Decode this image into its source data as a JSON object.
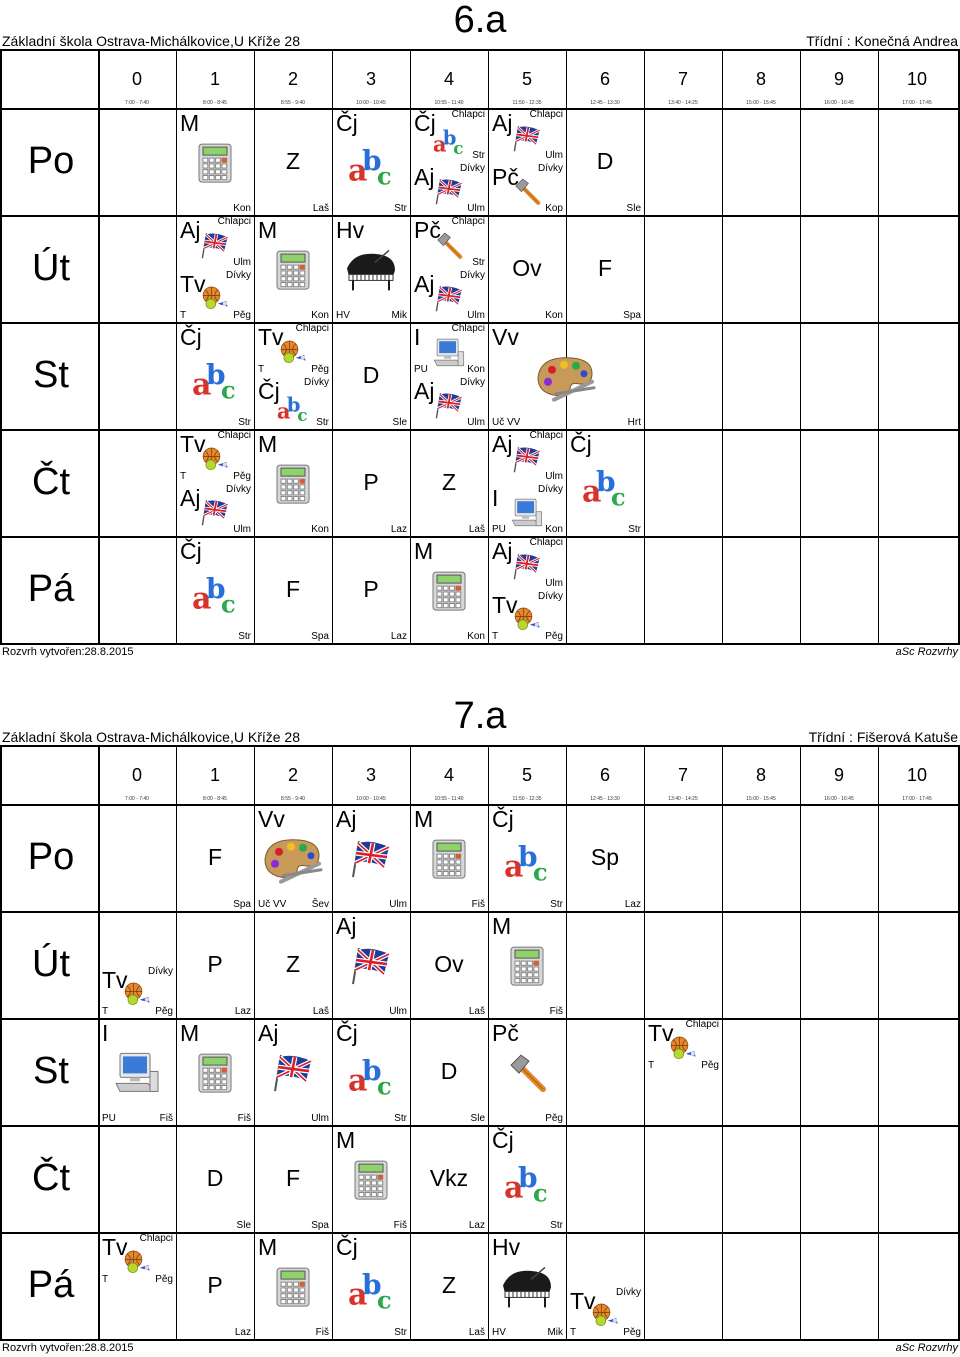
{
  "school": "Základní škola Ostrava-Michálkovice,U Kříže 28",
  "created": "Rozvrh vytvořen:28.8.2015",
  "brand": "aSc Rozvrhy",
  "periods": [
    "0",
    "1",
    "2",
    "3",
    "4",
    "5",
    "6",
    "7",
    "8",
    "9",
    "10"
  ],
  "times": [
    "7:00 - 7:40",
    "8:00 - 8:45",
    "8:55 - 9:40",
    "10:00 - 10:45",
    "10:55 - 11:40",
    "11:50 - 12:35",
    "12:45 - 13:30",
    "13:40 - 14:25",
    "15:00 - 15:45",
    "16:00 - 16:45",
    "17:00 - 17:45"
  ],
  "days": [
    "Po",
    "Út",
    "St",
    "Čt",
    "Pá"
  ],
  "schedules": [
    {
      "title": "6.a",
      "teacher": "Třídní : Konečná Andrea",
      "cells": [
        {
          "d": 0,
          "p": 1,
          "s": "M",
          "t": "Kon",
          "icon": "calc-icon"
        },
        {
          "d": 0,
          "p": 2,
          "s": "Z",
          "t": "Laš",
          "center": true
        },
        {
          "d": 0,
          "p": 3,
          "s": "Čj",
          "t": "Str",
          "icon": "abc-icon"
        },
        {
          "d": 0,
          "p": 4,
          "h": 0,
          "s": "Čj",
          "g": "Chlapci",
          "t": "Str",
          "icon": "abc-icon"
        },
        {
          "d": 0,
          "p": 4,
          "h": 1,
          "s": "Aj",
          "g": "Dívky",
          "t": "Ulm",
          "icon": "flag-icon"
        },
        {
          "d": 0,
          "p": 5,
          "h": 0,
          "s": "Aj",
          "g": "Chlapci",
          "t": "Ulm",
          "icon": "flag-icon"
        },
        {
          "d": 0,
          "p": 5,
          "h": 1,
          "s": "Pč",
          "g": "Dívky",
          "t": "Kop",
          "icon": "hammer-icon"
        },
        {
          "d": 0,
          "p": 6,
          "s": "D",
          "t": "Sle",
          "center": true
        },
        {
          "d": 1,
          "p": 1,
          "h": 0,
          "s": "Aj",
          "g": "Chlapci",
          "t": "Ulm",
          "icon": "flag-icon"
        },
        {
          "d": 1,
          "p": 1,
          "h": 1,
          "s": "Tv",
          "g": "Dívky",
          "r": "T",
          "t": "Pěg",
          "icon": "ball-icon"
        },
        {
          "d": 1,
          "p": 2,
          "s": "M",
          "t": "Kon",
          "icon": "calc-icon"
        },
        {
          "d": 1,
          "p": 3,
          "s": "Hv",
          "r": "HV",
          "t": "Mik",
          "icon": "piano-icon"
        },
        {
          "d": 1,
          "p": 4,
          "h": 0,
          "s": "Pč",
          "g": "Chlapci",
          "t": "Str",
          "icon": "hammer-icon"
        },
        {
          "d": 1,
          "p": 4,
          "h": 1,
          "s": "Aj",
          "g": "Dívky",
          "t": "Ulm",
          "icon": "flag-icon"
        },
        {
          "d": 1,
          "p": 5,
          "s": "Ov",
          "t": "Kon",
          "center": true
        },
        {
          "d": 1,
          "p": 6,
          "s": "F",
          "t": "Spa",
          "center": true
        },
        {
          "d": 2,
          "p": 1,
          "s": "Čj",
          "t": "Str",
          "icon": "abc-icon"
        },
        {
          "d": 2,
          "p": 2,
          "h": 0,
          "s": "Tv",
          "g": "Chlapci",
          "r": "T",
          "t": "Pěg",
          "icon": "ball-icon"
        },
        {
          "d": 2,
          "p": 2,
          "h": 1,
          "s": "Čj",
          "g": "Dívky",
          "t": "Str",
          "icon": "abc-icon"
        },
        {
          "d": 2,
          "p": 3,
          "s": "D",
          "t": "Sle",
          "center": true
        },
        {
          "d": 2,
          "p": 4,
          "h": 0,
          "s": "I",
          "g": "Chlapci",
          "r": "PU",
          "t": "Kon",
          "icon": "pc-icon"
        },
        {
          "d": 2,
          "p": 4,
          "h": 1,
          "s": "Aj",
          "g": "Dívky",
          "t": "Ulm",
          "icon": "flag-icon"
        },
        {
          "d": 2,
          "p": 5,
          "span": 2,
          "s": "Vv",
          "r": "Uč VV",
          "t": "Hrt",
          "icon": "palette-icon"
        },
        {
          "d": 3,
          "p": 1,
          "h": 0,
          "s": "Tv",
          "g": "Chlapci",
          "r": "T",
          "t": "Pěg",
          "icon": "ball-icon"
        },
        {
          "d": 3,
          "p": 1,
          "h": 1,
          "s": "Aj",
          "g": "Dívky",
          "t": "Ulm",
          "icon": "flag-icon"
        },
        {
          "d": 3,
          "p": 2,
          "s": "M",
          "t": "Kon",
          "icon": "calc-icon"
        },
        {
          "d": 3,
          "p": 3,
          "s": "P",
          "t": "Laz",
          "center": true
        },
        {
          "d": 3,
          "p": 4,
          "s": "Z",
          "t": "Laš",
          "center": true
        },
        {
          "d": 3,
          "p": 5,
          "h": 0,
          "s": "Aj",
          "g": "Chlapci",
          "t": "Ulm",
          "icon": "flag-icon"
        },
        {
          "d": 3,
          "p": 5,
          "h": 1,
          "s": "I",
          "g": "Dívky",
          "r": "PU",
          "t": "Kon",
          "icon": "pc-icon"
        },
        {
          "d": 3,
          "p": 6,
          "s": "Čj",
          "t": "Str",
          "icon": "abc-icon"
        },
        {
          "d": 4,
          "p": 1,
          "s": "Čj",
          "t": "Str",
          "icon": "abc-icon"
        },
        {
          "d": 4,
          "p": 2,
          "s": "F",
          "t": "Spa",
          "center": true
        },
        {
          "d": 4,
          "p": 3,
          "s": "P",
          "t": "Laz",
          "center": true
        },
        {
          "d": 4,
          "p": 4,
          "s": "M",
          "t": "Kon",
          "icon": "calc-icon"
        },
        {
          "d": 4,
          "p": 5,
          "h": 0,
          "s": "Aj",
          "g": "Chlapci",
          "t": "Ulm",
          "icon": "flag-icon"
        },
        {
          "d": 4,
          "p": 5,
          "h": 1,
          "s": "Tv",
          "g": "Dívky",
          "r": "T",
          "t": "Pěg",
          "icon": "ball-icon"
        }
      ]
    },
    {
      "title": "7.a",
      "teacher": "Třídní : Fišerová Katuše",
      "cells": [
        {
          "d": 0,
          "p": 1,
          "s": "F",
          "t": "Spa",
          "center": true
        },
        {
          "d": 0,
          "p": 2,
          "s": "Vv",
          "r": "Uč VV",
          "t": "Šev",
          "icon": "palette-icon"
        },
        {
          "d": 0,
          "p": 3,
          "s": "Aj",
          "t": "Ulm",
          "icon": "flag-icon"
        },
        {
          "d": 0,
          "p": 4,
          "s": "M",
          "t": "Fiš",
          "icon": "calc-icon"
        },
        {
          "d": 0,
          "p": 5,
          "s": "Čj",
          "t": "Str",
          "icon": "abc-icon"
        },
        {
          "d": 0,
          "p": 6,
          "s": "Sp",
          "t": "Laz",
          "center": true
        },
        {
          "d": 1,
          "p": 0,
          "h": 1,
          "s": "Tv",
          "g": "Dívky",
          "r": "T",
          "t": "Pěg",
          "icon": "ball-icon"
        },
        {
          "d": 1,
          "p": 1,
          "s": "P",
          "t": "Laz",
          "center": true
        },
        {
          "d": 1,
          "p": 2,
          "s": "Z",
          "t": "Laš",
          "center": true
        },
        {
          "d": 1,
          "p": 3,
          "s": "Aj",
          "t": "Ulm",
          "icon": "flag-icon"
        },
        {
          "d": 1,
          "p": 4,
          "s": "Ov",
          "t": "Laš",
          "center": true
        },
        {
          "d": 1,
          "p": 5,
          "s": "M",
          "t": "Fiš",
          "icon": "calc-icon"
        },
        {
          "d": 2,
          "p": 0,
          "s": "I",
          "r": "PU",
          "t": "Fiš",
          "icon": "pc-icon"
        },
        {
          "d": 2,
          "p": 1,
          "s": "M",
          "t": "Fiš",
          "icon": "calc-icon"
        },
        {
          "d": 2,
          "p": 2,
          "s": "Aj",
          "t": "Ulm",
          "icon": "flag-icon"
        },
        {
          "d": 2,
          "p": 3,
          "s": "Čj",
          "t": "Str",
          "icon": "abc-icon"
        },
        {
          "d": 2,
          "p": 4,
          "s": "D",
          "t": "Sle",
          "center": true
        },
        {
          "d": 2,
          "p": 5,
          "s": "Pč",
          "t": "Pěg",
          "icon": "hammer-icon"
        },
        {
          "d": 2,
          "p": 7,
          "h": 0,
          "s": "Tv",
          "g": "Chlapci",
          "r": "T",
          "t": "Pěg",
          "icon": "ball-icon"
        },
        {
          "d": 3,
          "p": 1,
          "s": "D",
          "t": "Sle",
          "center": true
        },
        {
          "d": 3,
          "p": 2,
          "s": "F",
          "t": "Spa",
          "center": true
        },
        {
          "d": 3,
          "p": 3,
          "s": "M",
          "t": "Fiš",
          "icon": "calc-icon"
        },
        {
          "d": 3,
          "p": 4,
          "s": "Vkz",
          "t": "Laz",
          "center": true
        },
        {
          "d": 3,
          "p": 5,
          "s": "Čj",
          "t": "Str",
          "icon": "abc-icon"
        },
        {
          "d": 4,
          "p": 0,
          "h": 0,
          "s": "Tv",
          "g": "Chlapci",
          "r": "T",
          "t": "Pěg",
          "icon": "ball-icon"
        },
        {
          "d": 4,
          "p": 1,
          "s": "P",
          "t": "Laz",
          "center": true
        },
        {
          "d": 4,
          "p": 2,
          "s": "M",
          "t": "Fiš",
          "icon": "calc-icon"
        },
        {
          "d": 4,
          "p": 3,
          "s": "Čj",
          "t": "Str",
          "icon": "abc-icon"
        },
        {
          "d": 4,
          "p": 4,
          "s": "Z",
          "t": "Laš",
          "center": true
        },
        {
          "d": 4,
          "p": 5,
          "s": "Hv",
          "r": "HV",
          "t": "Mik",
          "icon": "piano-icon"
        },
        {
          "d": 4,
          "p": 6,
          "h": 1,
          "s": "Tv",
          "g": "Dívky",
          "r": "T",
          "t": "Pěg",
          "icon": "ball-icon"
        }
      ]
    }
  ]
}
